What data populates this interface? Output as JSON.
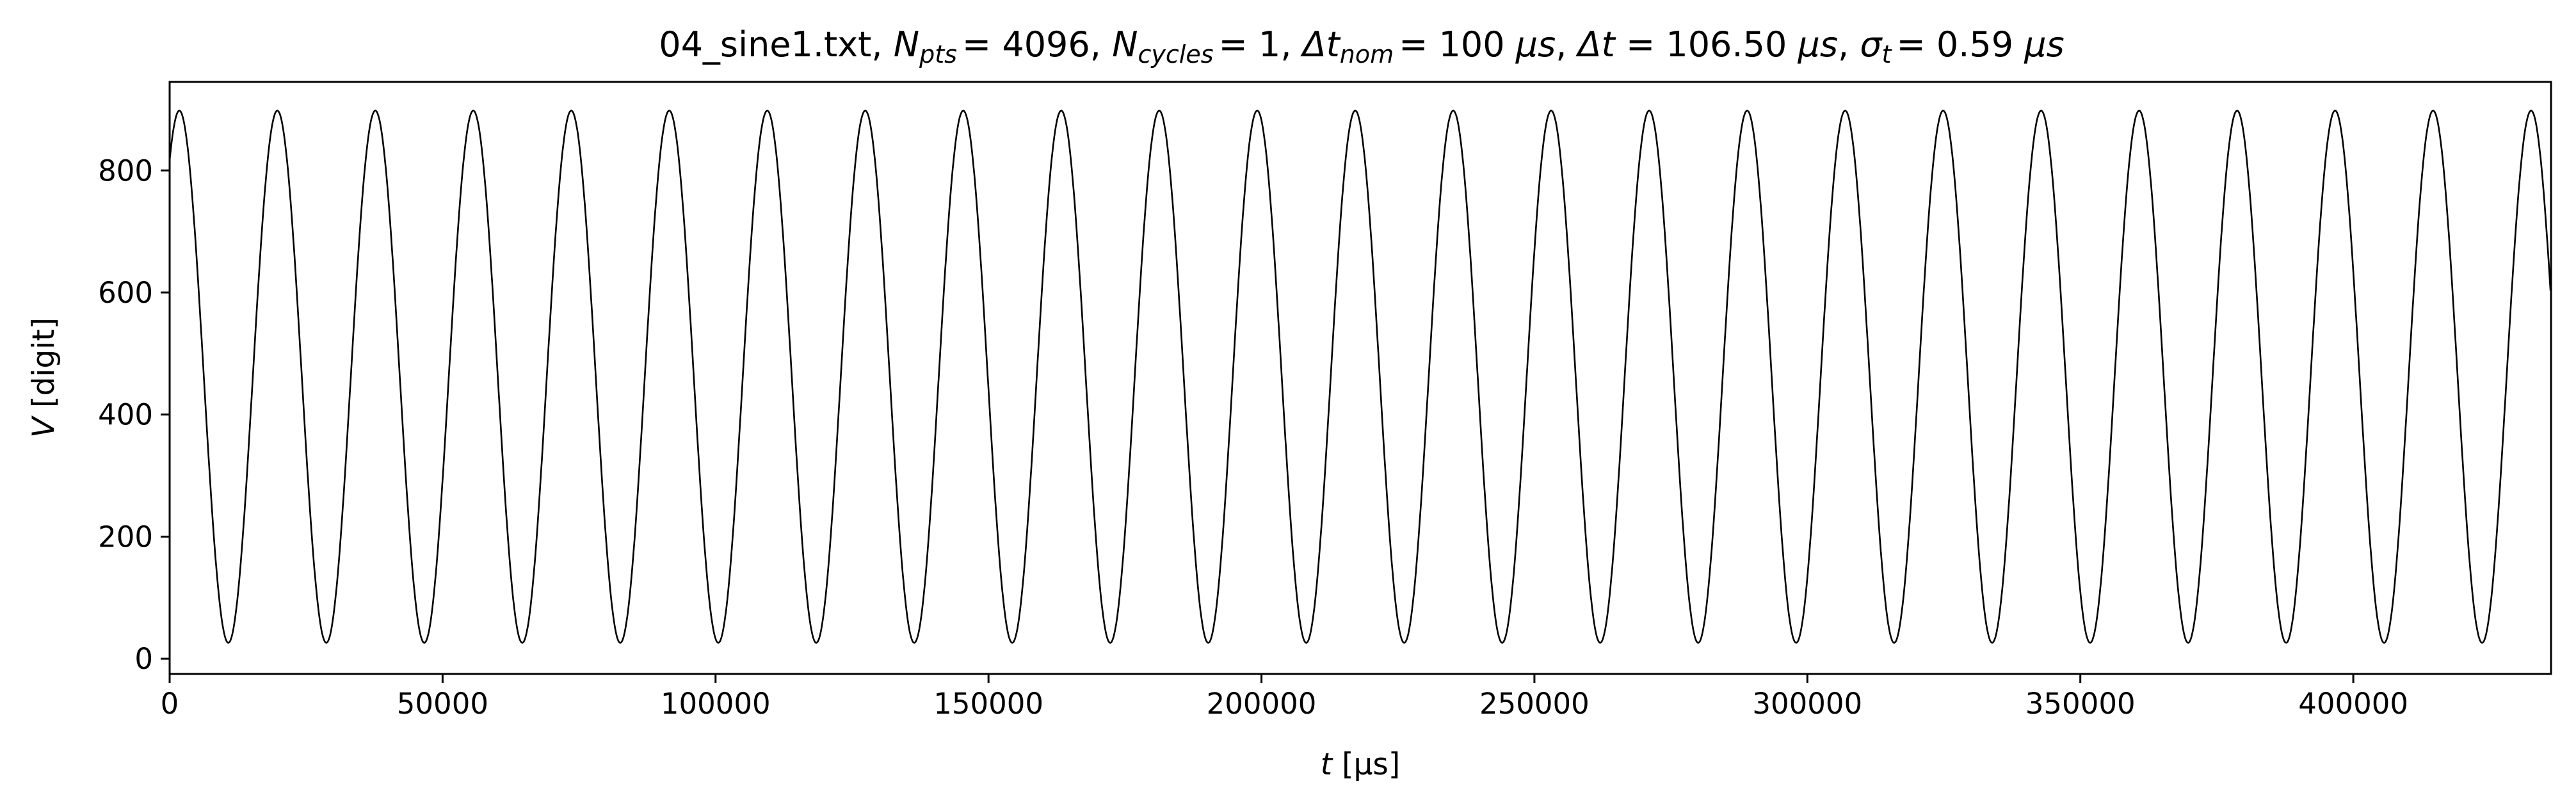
{
  "chart_data": {
    "type": "line",
    "title": {
      "file": "04_sine1.txt",
      "n_pts_symbol": "N",
      "n_pts_sub": "pts",
      "n_pts_value": "= 4096",
      "n_cycles_symbol": "N",
      "n_cycles_sub": "cycles",
      "n_cycles_value": "= 1",
      "dt_nom_symbol": "Δt",
      "dt_nom_sub": "nom",
      "dt_nom_value": "= 100",
      "dt_symbol": "Δt",
      "dt_value": "= 106.50",
      "sigma_symbol": "σ",
      "sigma_sub": "t",
      "sigma_value": "= 0.59",
      "unit": "μs"
    },
    "xlabel": {
      "symbol": "t",
      "unit": "[μs]"
    },
    "ylabel": {
      "symbol": "V",
      "unit": "[digit]"
    },
    "xlim": [
      0,
      436224
    ],
    "ylim": [
      -25,
      945
    ],
    "xticks": [
      0,
      50000,
      100000,
      150000,
      200000,
      250000,
      300000,
      350000,
      400000
    ],
    "yticks": [
      0,
      200,
      400,
      600,
      800
    ],
    "grid": false,
    "legend": "none",
    "series": [
      {
        "function": "sine",
        "color": "#000000",
        "n_points": 4096,
        "dt": 106.5,
        "offset": 462,
        "amplitude": 436,
        "period": 17950,
        "phase_rad": 0.95
      }
    ]
  }
}
